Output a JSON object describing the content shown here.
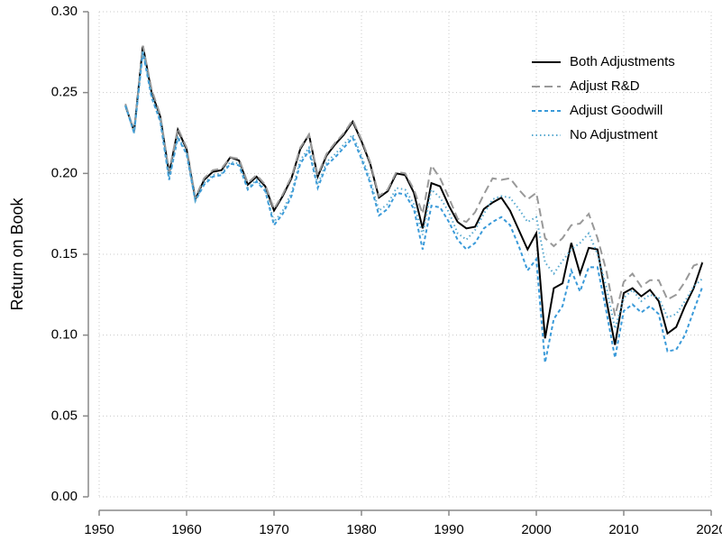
{
  "chart_data": {
    "type": "line",
    "y_label": "Return on Book",
    "x": [
      1953,
      1954,
      1955,
      1956,
      1957,
      1958,
      1959,
      1960,
      1961,
      1962,
      1963,
      1964,
      1965,
      1966,
      1967,
      1968,
      1969,
      1970,
      1971,
      1972,
      1973,
      1974,
      1975,
      1976,
      1977,
      1978,
      1979,
      1980,
      1981,
      1982,
      1983,
      1984,
      1985,
      1986,
      1987,
      1988,
      1989,
      1990,
      1991,
      1992,
      1993,
      1994,
      1995,
      1996,
      1997,
      1998,
      1999,
      2000,
      2001,
      2002,
      2003,
      2004,
      2005,
      2006,
      2007,
      2008,
      2009,
      2010,
      2011,
      2012,
      2013,
      2014,
      2015,
      2016,
      2017,
      2018,
      2019
    ],
    "series": [
      {
        "name": "Both Adjustments",
        "color": "#000000",
        "dash": "solid",
        "values": [
          0.242,
          0.226,
          0.279,
          0.25,
          0.235,
          0.2,
          0.227,
          0.215,
          0.184,
          0.196,
          0.201,
          0.202,
          0.21,
          0.208,
          0.193,
          0.198,
          0.192,
          0.177,
          0.186,
          0.197,
          0.215,
          0.224,
          0.198,
          0.211,
          0.218,
          0.224,
          0.232,
          0.22,
          0.206,
          0.185,
          0.189,
          0.2,
          0.199,
          0.188,
          0.166,
          0.194,
          0.192,
          0.18,
          0.17,
          0.166,
          0.167,
          0.178,
          0.182,
          0.185,
          0.177,
          0.165,
          0.153,
          0.163,
          0.098,
          0.129,
          0.132,
          0.157,
          0.138,
          0.154,
          0.153,
          0.122,
          0.094,
          0.126,
          0.129,
          0.124,
          0.128,
          0.121,
          0.101,
          0.105,
          0.118,
          0.129,
          0.145
        ]
      },
      {
        "name": "Adjust R&D",
        "color": "#999999",
        "dash": "longdash",
        "values": [
          0.243,
          0.226,
          0.279,
          0.252,
          0.236,
          0.201,
          0.228,
          0.216,
          0.185,
          0.197,
          0.202,
          0.203,
          0.21,
          0.209,
          0.194,
          0.199,
          0.193,
          0.178,
          0.187,
          0.198,
          0.216,
          0.224,
          0.199,
          0.212,
          0.219,
          0.225,
          0.233,
          0.221,
          0.207,
          0.186,
          0.19,
          0.201,
          0.2,
          0.19,
          0.175,
          0.205,
          0.197,
          0.185,
          0.172,
          0.17,
          0.176,
          0.187,
          0.197,
          0.196,
          0.197,
          0.19,
          0.184,
          0.188,
          0.16,
          0.155,
          0.16,
          0.168,
          0.169,
          0.175,
          0.16,
          0.14,
          0.112,
          0.133,
          0.138,
          0.13,
          0.134,
          0.134,
          0.122,
          0.125,
          0.133,
          0.143,
          0.145
        ]
      },
      {
        "name": "Adjust Goodwill",
        "color": "#3a9ad9",
        "dash": "shortdash",
        "values": [
          0.242,
          0.225,
          0.275,
          0.247,
          0.232,
          0.196,
          0.222,
          0.212,
          0.183,
          0.193,
          0.198,
          0.199,
          0.206,
          0.205,
          0.19,
          0.195,
          0.189,
          0.168,
          0.175,
          0.186,
          0.206,
          0.214,
          0.191,
          0.205,
          0.21,
          0.216,
          0.222,
          0.209,
          0.194,
          0.174,
          0.178,
          0.188,
          0.187,
          0.178,
          0.153,
          0.18,
          0.179,
          0.17,
          0.159,
          0.153,
          0.157,
          0.166,
          0.17,
          0.173,
          0.168,
          0.155,
          0.14,
          0.147,
          0.083,
          0.11,
          0.118,
          0.14,
          0.127,
          0.142,
          0.142,
          0.115,
          0.086,
          0.115,
          0.119,
          0.114,
          0.118,
          0.113,
          0.09,
          0.091,
          0.1,
          0.115,
          0.13
        ]
      },
      {
        "name": "No Adjustment",
        "color": "#5aaad0",
        "dash": "dot",
        "values": [
          0.242,
          0.225,
          0.276,
          0.248,
          0.233,
          0.197,
          0.223,
          0.213,
          0.183,
          0.194,
          0.199,
          0.2,
          0.207,
          0.206,
          0.191,
          0.196,
          0.19,
          0.17,
          0.177,
          0.188,
          0.208,
          0.216,
          0.193,
          0.207,
          0.212,
          0.218,
          0.224,
          0.211,
          0.196,
          0.177,
          0.181,
          0.191,
          0.19,
          0.181,
          0.162,
          0.19,
          0.185,
          0.176,
          0.163,
          0.159,
          0.165,
          0.175,
          0.184,
          0.186,
          0.185,
          0.178,
          0.17,
          0.173,
          0.145,
          0.138,
          0.146,
          0.153,
          0.157,
          0.163,
          0.15,
          0.13,
          0.104,
          0.123,
          0.128,
          0.121,
          0.125,
          0.123,
          0.111,
          0.113,
          0.121,
          0.13,
          0.135
        ]
      }
    ],
    "xlim": [
      1950,
      2020
    ],
    "xticks": [
      1950,
      1960,
      1970,
      1980,
      1990,
      2000,
      2010,
      2020
    ],
    "ylim": [
      0,
      0.3
    ],
    "yticks": [
      {
        "value": 0,
        "label": "0.00"
      },
      {
        "value": 0.05,
        "label": "0.05"
      },
      {
        "value": 0.1,
        "label": "0.10"
      },
      {
        "value": 0.15,
        "label": "0.15"
      },
      {
        "value": 0.2,
        "label": "0.20"
      },
      {
        "value": 0.25,
        "label": "0.25"
      },
      {
        "value": 0.3,
        "label": "0.30"
      }
    ],
    "grid": true,
    "legend": "upper right"
  }
}
